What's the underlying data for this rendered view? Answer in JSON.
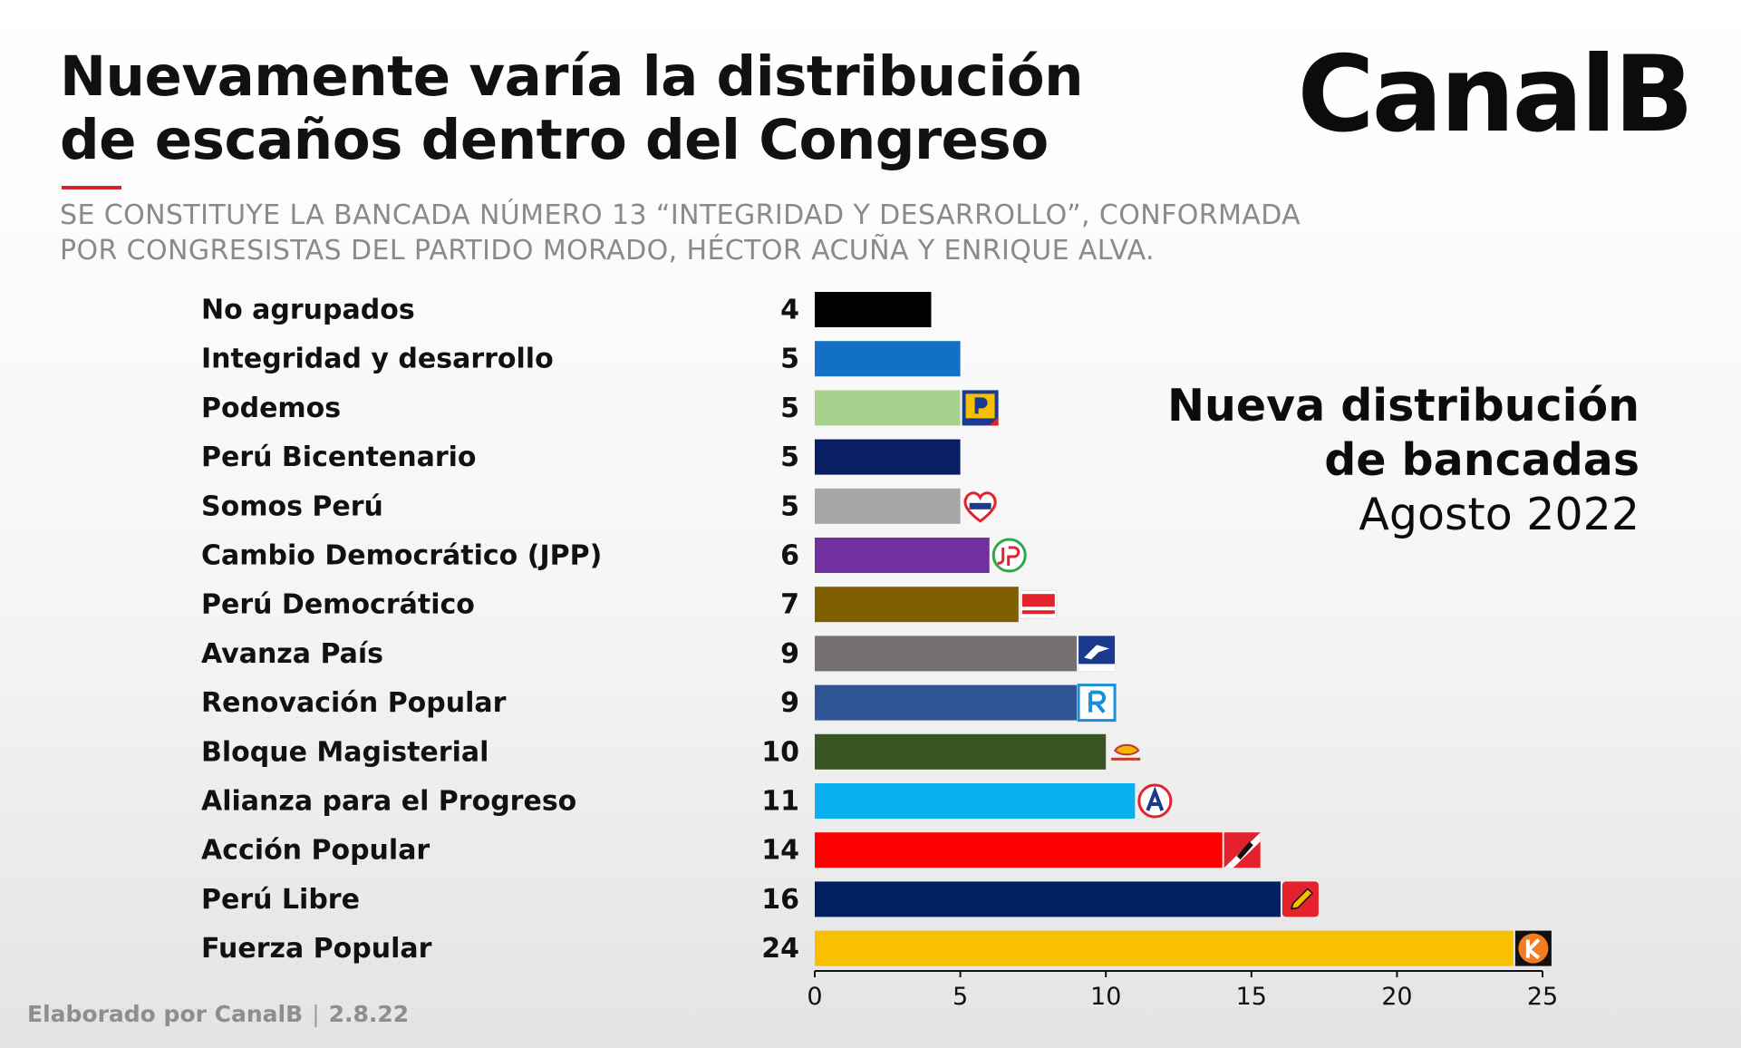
{
  "header": {
    "title": "Nuevamente varía la distribución\nde escaños dentro del Congreso",
    "subtitle": "SE CONSTITUYE LA BANCADA NÚMERO 13 “INTEGRIDAD Y DESARROLLO”, CONFORMADA\nPOR CONGRESISTAS DEL PARTIDO MORADO, HÉCTOR ACUÑA Y ENRIQUE ALVA.",
    "accent_color": "#d8232a"
  },
  "brand": {
    "logo_text": "CanalB"
  },
  "panel": {
    "line1": "Nueva distribución",
    "line2": "de bancadas",
    "line3": "Agosto 2022"
  },
  "footer": {
    "credit": "Elaborado por CanalB",
    "separator": "|",
    "date": "2.8.22"
  },
  "chart_data": {
    "type": "bar",
    "orientation": "horizontal",
    "categories": [
      "No agrupados",
      "Integridad y desarrollo",
      "Podemos",
      "Perú Bicentenario",
      "Somos Perú",
      "Cambio Democrático (JPP)",
      "Perú Democrático",
      "Avanza País",
      "Renovación Popular",
      "Bloque Magisterial",
      "Alianza para el Progreso",
      "Acción Popular",
      "Perú Libre",
      "Fuerza Popular"
    ],
    "values": [
      4,
      5,
      5,
      5,
      5,
      6,
      7,
      9,
      9,
      10,
      11,
      14,
      16,
      24
    ],
    "colors": [
      "#000000",
      "#1271c4",
      "#a9d18e",
      "#0a1e66",
      "#a6a6a6",
      "#7030a0",
      "#7f5f00",
      "#767171",
      "#2f5597",
      "#375623",
      "#0ab0f0",
      "#ff0000",
      "#002060",
      "#f9c000"
    ],
    "logos": [
      "",
      "",
      "podemos",
      "",
      "somos-peru",
      "jp",
      "peru-democratico",
      "avanza-pais",
      "renovacion-popular",
      "bloque-magisterial",
      "app",
      "accion-popular",
      "peru-libre",
      "fuerza-popular"
    ],
    "xlim": [
      0,
      25
    ],
    "xticks": [
      0,
      5,
      10,
      15,
      20,
      25
    ],
    "grid": false
  }
}
